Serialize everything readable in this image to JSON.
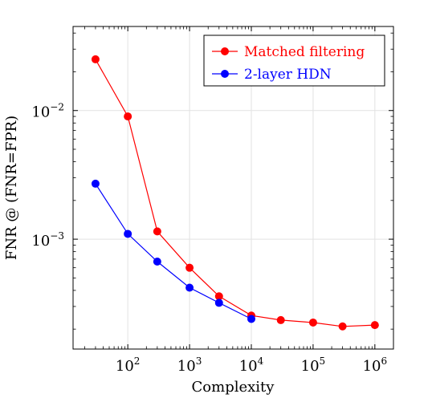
{
  "chart_data": {
    "type": "line",
    "xlabel": "Complexity",
    "ylabel": "FNR @ (FNR=FPR)",
    "x_scale": "log",
    "y_scale": "log",
    "xlim": [
      13,
      2000000
    ],
    "ylim": [
      0.00014,
      0.045
    ],
    "grid": true,
    "legend_position": "top-right",
    "x_ticks": [
      {
        "value": 100,
        "base": "10",
        "exp": "2"
      },
      {
        "value": 1000,
        "base": "10",
        "exp": "3"
      },
      {
        "value": 10000,
        "base": "10",
        "exp": "4"
      },
      {
        "value": 100000,
        "base": "10",
        "exp": "5"
      },
      {
        "value": 1000000,
        "base": "10",
        "exp": "6"
      }
    ],
    "y_ticks": [
      {
        "value": 0.001,
        "base": "10",
        "exp": "−3"
      },
      {
        "value": 0.01,
        "base": "10",
        "exp": "−2"
      }
    ],
    "series": [
      {
        "name": "Matched filtering",
        "color": "#ff0000",
        "x": [
          30,
          100,
          300,
          1000,
          3000,
          10000,
          30000,
          100000,
          300000,
          1000000
        ],
        "y": [
          0.025,
          0.009,
          0.00115,
          0.0006,
          0.00036,
          0.000255,
          0.000235,
          0.000225,
          0.00021,
          0.000215
        ]
      },
      {
        "name": "2-layer HDN",
        "color": "#0000ff",
        "x": [
          30,
          100,
          300,
          1000,
          3000,
          10000
        ],
        "y": [
          0.0027,
          0.0011,
          0.00067,
          0.00042,
          0.00032,
          0.00024
        ]
      }
    ]
  }
}
